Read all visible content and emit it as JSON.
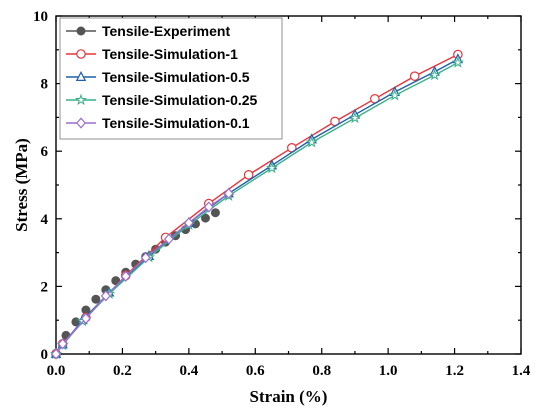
{
  "chart_data": {
    "type": "line",
    "xlabel": "Strain (%)",
    "ylabel": "Stress (MPa)",
    "xlim": [
      0.0,
      1.4
    ],
    "ylim": [
      0,
      10
    ],
    "xticks": [
      "0.0",
      "0.2",
      "0.4",
      "0.6",
      "0.8",
      "1.0",
      "1.2",
      "1.4"
    ],
    "yticks": [
      "0",
      "2",
      "4",
      "6",
      "8",
      "10"
    ],
    "legend_position": "top-left",
    "series": [
      {
        "name": "Tensile-Experiment",
        "color": "#555555",
        "marker": "filled-circle",
        "x": [
          0.0,
          0.03,
          0.06,
          0.09,
          0.12,
          0.15,
          0.18,
          0.21,
          0.24,
          0.27,
          0.3,
          0.33,
          0.36,
          0.39,
          0.42,
          0.45,
          0.48
        ],
        "y": [
          0.02,
          0.55,
          0.95,
          1.3,
          1.62,
          1.9,
          2.17,
          2.42,
          2.66,
          2.88,
          3.1,
          3.31,
          3.5,
          3.68,
          3.85,
          4.02,
          4.18
        ]
      },
      {
        "name": "Tensile-Simulation-1",
        "color": "#e8333a",
        "marker": "open-circle",
        "x": [
          0.0,
          0.02,
          0.09,
          0.21,
          0.33,
          0.46,
          0.58,
          0.71,
          0.84,
          0.96,
          1.08,
          1.21
        ],
        "y": [
          0.0,
          0.3,
          1.08,
          2.32,
          3.45,
          4.45,
          5.3,
          6.1,
          6.88,
          7.55,
          8.22,
          8.86
        ]
      },
      {
        "name": "Tensile-Simulation-0.5",
        "color": "#1f5fa8",
        "marker": "open-triangle-up",
        "x": [
          0.0,
          0.02,
          0.08,
          0.16,
          0.28,
          0.4,
          0.52,
          0.65,
          0.77,
          0.9,
          1.02,
          1.14,
          1.21
        ],
        "y": [
          0.0,
          0.28,
          1.0,
          1.82,
          2.9,
          3.88,
          4.75,
          5.58,
          6.35,
          7.08,
          7.75,
          8.35,
          8.72
        ]
      },
      {
        "name": "Tensile-Simulation-0.25",
        "color": "#3cb08a",
        "marker": "open-star",
        "x": [
          0.0,
          0.02,
          0.08,
          0.16,
          0.28,
          0.4,
          0.52,
          0.65,
          0.77,
          0.9,
          1.02,
          1.14,
          1.21
        ],
        "y": [
          0.0,
          0.26,
          0.97,
          1.78,
          2.86,
          3.82,
          4.68,
          5.5,
          6.26,
          6.98,
          7.65,
          8.25,
          8.62
        ]
      },
      {
        "name": "Tensile-Simulation-0.1",
        "color": "#9a6fcf",
        "marker": "open-diamond",
        "x": [
          0.0,
          0.02,
          0.09,
          0.15,
          0.21,
          0.27,
          0.34,
          0.4,
          0.46,
          0.52
        ],
        "y": [
          0.0,
          0.3,
          1.05,
          1.72,
          2.3,
          2.85,
          3.4,
          3.88,
          4.35,
          4.75
        ]
      }
    ]
  }
}
